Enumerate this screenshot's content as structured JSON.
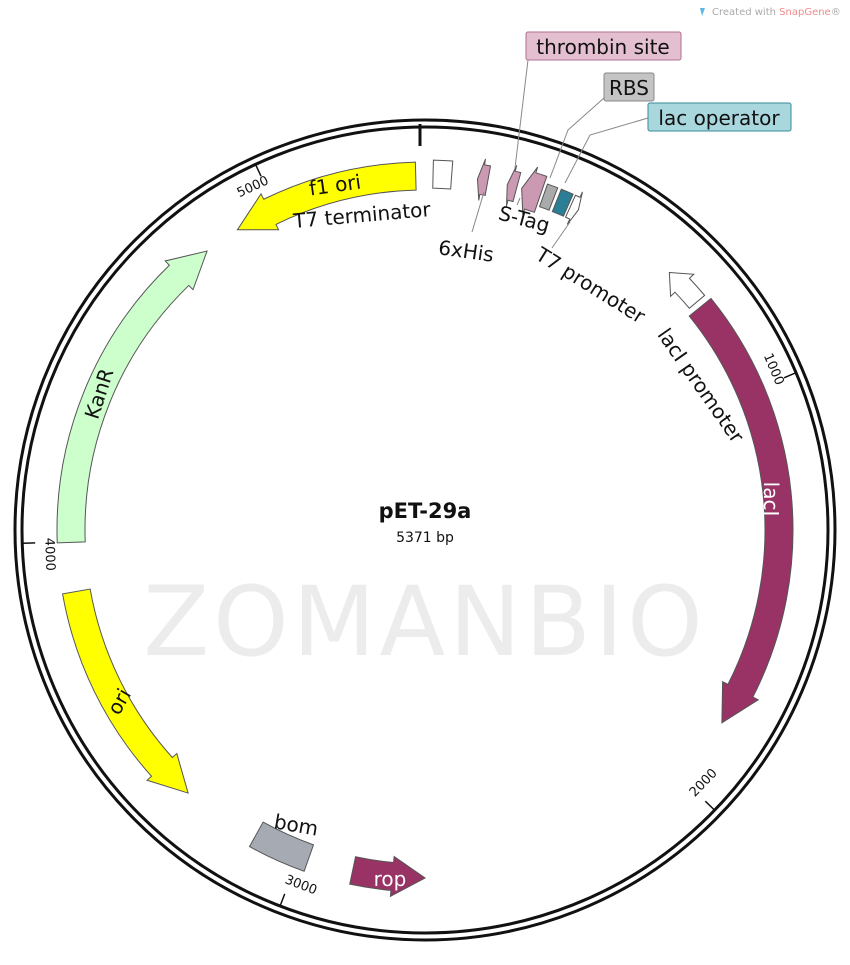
{
  "credit": {
    "prefix": "Created with ",
    "brand": "SnapGene",
    "suffix": "®",
    "brand_color": "#f08a8a"
  },
  "watermark": "ZOMANBIO",
  "plasmid": {
    "name": "pET-29a",
    "size_label": "5371 bp"
  },
  "ticks": [
    "1000",
    "2000",
    "3000",
    "4000",
    "5000"
  ],
  "features": {
    "f1_ori": {
      "label": "f1 ori",
      "color": "#ffff00"
    },
    "kanr": {
      "label": "KanR",
      "color": "#ccffcc"
    },
    "ori": {
      "label": "ori",
      "color": "#ffff00"
    },
    "bom": {
      "label": "bom",
      "color": "#a6abb3"
    },
    "rop": {
      "label": "rop",
      "color": "#993366"
    },
    "laci": {
      "label": "lacI",
      "color": "#993366"
    },
    "laci_promoter": {
      "label": "lacI promoter",
      "color": "#ffffff"
    },
    "t7_promoter": {
      "label": "T7 promoter",
      "color": "#ffffff"
    },
    "lac_operator": {
      "label": "lac operator",
      "color": "#2a7f96"
    },
    "rbs": {
      "label": "RBS",
      "color": "#aaaaaa"
    },
    "s_tag": {
      "label": "S-Tag",
      "color": "#cc99b3"
    },
    "thrombin_site": {
      "label": "thrombin site",
      "color": "#cc99b3"
    },
    "his_tag": {
      "label": "6xHis",
      "color": "#cc99b3"
    },
    "t7_terminator": {
      "label": "T7 terminator",
      "color": "#ffffff"
    }
  },
  "callout_colors": {
    "thrombin_site": "#e3bfd0",
    "rbs": "#c4c4c4",
    "lac_operator": "#a9d7de"
  }
}
